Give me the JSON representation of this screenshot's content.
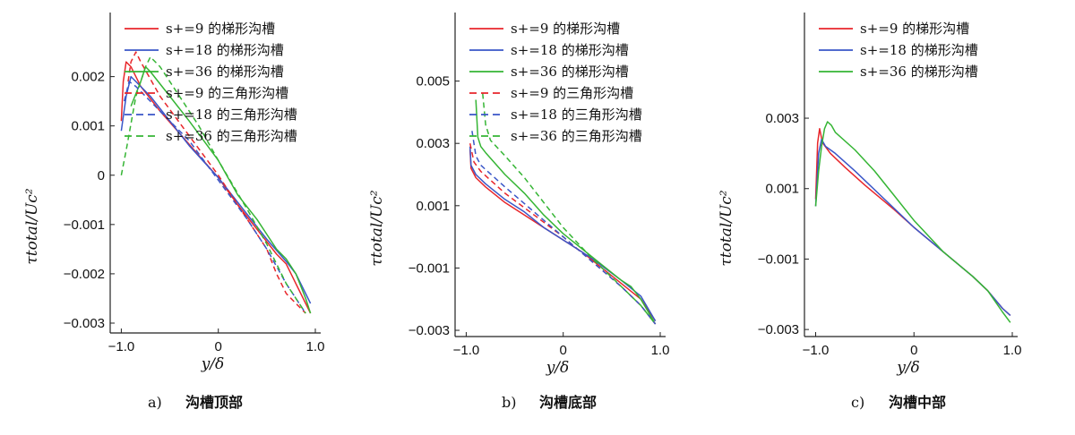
{
  "chart_data": [
    {
      "type": "line",
      "panel_letter": "a)",
      "caption": "沟槽顶部",
      "xlabel": "y/δ",
      "ylabel": "τtotal/Uc²",
      "xlim": [
        -1.05,
        1.0
      ],
      "ylim": [
        -0.0032,
        0.0033
      ],
      "xticks": [
        -1.0,
        0,
        1.0
      ],
      "xtick_labels": [
        "-1.0",
        "0",
        "1.0"
      ],
      "yticks": [
        0.002,
        0.001,
        0,
        -0.001,
        -0.002,
        -0.003
      ],
      "ytick_labels": [
        "0.002",
        "0.001",
        "0",
        "-0.001",
        "-0.002",
        "-0.003"
      ],
      "legend": [
        "s+=9 的梯形沟槽",
        "s+=18 的梯形沟槽",
        "s+=36 的梯形沟槽",
        "s+=9 的三角形沟槽",
        "s+=18 的三角形沟槽",
        "s+=36 的三角形沟槽"
      ],
      "legend_position": "top-left",
      "series": [
        {
          "color": "#e8262b",
          "dash": "solid",
          "points": [
            [
              -1.0,
              0.0011
            ],
            [
              -0.98,
              0.0019
            ],
            [
              -0.95,
              0.0023
            ],
            [
              -0.9,
              0.0022
            ],
            [
              -0.8,
              0.0018
            ],
            [
              -0.6,
              0.0013
            ],
            [
              -0.4,
              0.00085
            ],
            [
              -0.2,
              0.0004
            ],
            [
              0,
              -5e-05
            ],
            [
              0.2,
              -0.0006
            ],
            [
              0.4,
              -0.0011
            ],
            [
              0.6,
              -0.0016
            ],
            [
              0.7,
              -0.0018
            ],
            [
              0.8,
              -0.0022
            ],
            [
              0.9,
              -0.0026
            ],
            [
              0.95,
              -0.0028
            ]
          ]
        },
        {
          "color": "#3a56c8",
          "dash": "solid",
          "points": [
            [
              -1.0,
              0.0009
            ],
            [
              -0.95,
              0.0016
            ],
            [
              -0.9,
              0.002
            ],
            [
              -0.85,
              0.0019
            ],
            [
              -0.7,
              0.0016
            ],
            [
              -0.5,
              0.0011
            ],
            [
              -0.3,
              0.0006
            ],
            [
              0,
              -5e-05
            ],
            [
              0.3,
              -0.0008
            ],
            [
              0.5,
              -0.0013
            ],
            [
              0.7,
              -0.00175
            ],
            [
              0.8,
              -0.002
            ],
            [
              0.95,
              -0.0026
            ]
          ]
        },
        {
          "color": "#35b534",
          "dash": "solid",
          "points": [
            [
              -0.9,
              0.0014
            ],
            [
              -0.8,
              0.0019
            ],
            [
              -0.75,
              0.0022
            ],
            [
              -0.7,
              0.0021
            ],
            [
              -0.5,
              0.0016
            ],
            [
              -0.3,
              0.0011
            ],
            [
              0,
              0.0003
            ],
            [
              0.2,
              -0.0004
            ],
            [
              0.4,
              -0.0009
            ],
            [
              0.6,
              -0.0015
            ],
            [
              0.7,
              -0.0017
            ],
            [
              0.8,
              -0.002
            ],
            [
              0.9,
              -0.0025
            ],
            [
              0.95,
              -0.0028
            ]
          ]
        },
        {
          "color": "#e8262b",
          "dash": "dashed",
          "points": [
            [
              -0.93,
              0.0019
            ],
            [
              -0.9,
              0.0023
            ],
            [
              -0.85,
              0.0025
            ],
            [
              -0.8,
              0.0023
            ],
            [
              -0.6,
              0.0016
            ],
            [
              -0.3,
              0.0008
            ],
            [
              0,
              0.0
            ],
            [
              0.3,
              -0.0009
            ],
            [
              0.5,
              -0.0015
            ],
            [
              0.6,
              -0.002
            ],
            [
              0.7,
              -0.0024
            ],
            [
              0.8,
              -0.0026
            ],
            [
              0.9,
              -0.0028
            ]
          ]
        },
        {
          "color": "#3a56c8",
          "dash": "dashed",
          "points": [
            [
              -0.97,
              0.0015
            ],
            [
              -0.92,
              0.0019
            ],
            [
              -0.85,
              0.0018
            ],
            [
              -0.6,
              0.0013
            ],
            [
              -0.3,
              0.0007
            ],
            [
              0,
              -0.0001
            ],
            [
              0.3,
              -0.0009
            ],
            [
              0.5,
              -0.0015
            ],
            [
              0.7,
              -0.0022
            ],
            [
              0.8,
              -0.0025
            ],
            [
              0.9,
              -0.0028
            ]
          ]
        },
        {
          "color": "#35b534",
          "dash": "dashed",
          "points": [
            [
              -1.0,
              0.0
            ],
            [
              -0.95,
              0.0005
            ],
            [
              -0.85,
              0.0016
            ],
            [
              -0.75,
              0.0022
            ],
            [
              -0.7,
              0.0024
            ],
            [
              -0.6,
              0.0022
            ],
            [
              -0.4,
              0.0016
            ],
            [
              -0.2,
              0.001
            ],
            [
              0,
              0.0003
            ],
            [
              0.3,
              -0.0007
            ],
            [
              0.5,
              -0.0014
            ],
            [
              0.7,
              -0.0022
            ],
            [
              0.8,
              -0.0025
            ],
            [
              0.9,
              -0.0028
            ]
          ]
        }
      ]
    },
    {
      "type": "line",
      "panel_letter": "b)",
      "caption": "沟槽底部",
      "xlabel": "y/δ",
      "ylabel": "τtotal/Uc²",
      "xlim": [
        -1.05,
        1.0
      ],
      "ylim": [
        -0.0032,
        0.0072
      ],
      "xticks": [
        -1.0,
        0,
        1.0
      ],
      "xtick_labels": [
        "-1.0",
        "0",
        "1.0"
      ],
      "yticks": [
        0.005,
        0.003,
        0.001,
        -0.001,
        -0.003
      ],
      "ytick_labels": [
        "0.005",
        "0.003",
        "0.001",
        "-0.001",
        "-0.003"
      ],
      "legend": [
        "s+=9 的梯形沟槽",
        "s+=18 的梯形沟槽",
        "s+=36 的梯形沟槽",
        "s+=9 的三角形沟槽",
        "s+=18 的三角形沟槽",
        "s+=36 的三角形沟槽"
      ],
      "legend_position": "top-left",
      "series": [
        {
          "color": "#e8262b",
          "dash": "solid",
          "points": [
            [
              -0.96,
              0.0028
            ],
            [
              -0.95,
              0.0022
            ],
            [
              -0.9,
              0.0019
            ],
            [
              -0.8,
              0.0016
            ],
            [
              -0.6,
              0.0011
            ],
            [
              -0.4,
              0.0007
            ],
            [
              -0.2,
              0.0003
            ],
            [
              0,
              -0.0001
            ],
            [
              0.2,
              -0.0005
            ],
            [
              0.4,
              -0.001
            ],
            [
              0.6,
              -0.0015
            ],
            [
              0.8,
              -0.002
            ],
            [
              0.95,
              -0.0027
            ]
          ]
        },
        {
          "color": "#3a56c8",
          "dash": "solid",
          "points": [
            [
              -0.96,
              0.0029
            ],
            [
              -0.95,
              0.0023
            ],
            [
              -0.9,
              0.002
            ],
            [
              -0.8,
              0.0017
            ],
            [
              -0.6,
              0.0012
            ],
            [
              -0.4,
              0.0008
            ],
            [
              -0.2,
              0.0003
            ],
            [
              0,
              -0.0001
            ],
            [
              0.3,
              -0.0007
            ],
            [
              0.6,
              -0.0014
            ],
            [
              0.8,
              -0.0019
            ],
            [
              0.95,
              -0.0027
            ]
          ]
        },
        {
          "color": "#35b534",
          "dash": "solid",
          "points": [
            [
              -0.9,
              0.0044
            ],
            [
              -0.88,
              0.0032
            ],
            [
              -0.85,
              0.0029
            ],
            [
              -0.8,
              0.0027
            ],
            [
              -0.6,
              0.002
            ],
            [
              -0.4,
              0.0014
            ],
            [
              -0.2,
              0.0007
            ],
            [
              0,
              0.0001
            ],
            [
              0.2,
              -0.0004
            ],
            [
              0.4,
              -0.0009
            ],
            [
              0.6,
              -0.0014
            ],
            [
              0.7,
              -0.0016
            ],
            [
              0.8,
              -0.002
            ],
            [
              0.95,
              -0.0028
            ]
          ]
        },
        {
          "color": "#e8262b",
          "dash": "dashed",
          "points": [
            [
              -0.96,
              0.003
            ],
            [
              -0.92,
              0.0024
            ],
            [
              -0.85,
              0.0021
            ],
            [
              -0.6,
              0.0014
            ],
            [
              -0.3,
              0.0007
            ],
            [
              0,
              0.0
            ],
            [
              0.3,
              -0.0008
            ],
            [
              0.6,
              -0.0016
            ],
            [
              0.8,
              -0.0022
            ],
            [
              0.95,
              -0.0028
            ]
          ]
        },
        {
          "color": "#3a56c8",
          "dash": "dashed",
          "points": [
            [
              -0.94,
              0.0034
            ],
            [
              -0.9,
              0.0026
            ],
            [
              -0.85,
              0.0023
            ],
            [
              -0.6,
              0.0016
            ],
            [
              -0.3,
              0.0008
            ],
            [
              0,
              0.0
            ],
            [
              0.3,
              -0.0008
            ],
            [
              0.6,
              -0.0016
            ],
            [
              0.8,
              -0.0022
            ],
            [
              0.95,
              -0.0028
            ]
          ]
        },
        {
          "color": "#35b534",
          "dash": "dashed",
          "points": [
            [
              -0.83,
              0.0046
            ],
            [
              -0.8,
              0.0036
            ],
            [
              -0.75,
              0.0031
            ],
            [
              -0.6,
              0.0026
            ],
            [
              -0.4,
              0.0019
            ],
            [
              -0.2,
              0.0011
            ],
            [
              0,
              0.0003
            ],
            [
              0.3,
              -0.0007
            ],
            [
              0.6,
              -0.0016
            ],
            [
              0.8,
              -0.0022
            ],
            [
              0.95,
              -0.0028
            ]
          ]
        }
      ]
    },
    {
      "type": "line",
      "panel_letter": "c)",
      "caption": "沟槽中部",
      "xlabel": "y/δ",
      "ylabel": "τtotal/Uc²",
      "xlim": [
        -1.05,
        1.0
      ],
      "ylim": [
        -0.0032,
        0.006
      ],
      "xticks": [
        -1.0,
        0,
        1.0
      ],
      "xtick_labels": [
        "-1.0",
        "0",
        "1.0"
      ],
      "yticks": [
        0.003,
        0.001,
        -0.001,
        -0.003
      ],
      "ytick_labels": [
        "0.003",
        "0.001",
        "-0.001",
        "-0.003"
      ],
      "legend": [
        "s+=9 的梯形沟槽",
        "s+=18 的梯形沟槽",
        "s+=36 的梯形沟槽"
      ],
      "legend_position": "top-left",
      "series": [
        {
          "color": "#e8262b",
          "dash": "solid",
          "points": [
            [
              -1.0,
              0.0007
            ],
            [
              -0.98,
              0.0023
            ],
            [
              -0.96,
              0.0027
            ],
            [
              -0.93,
              0.0023
            ],
            [
              -0.85,
              0.002
            ],
            [
              -0.7,
              0.0016
            ],
            [
              -0.5,
              0.0011
            ],
            [
              -0.2,
              0.0004
            ],
            [
              0,
              -0.0001
            ],
            [
              0.3,
              -0.0008
            ],
            [
              0.6,
              -0.0015
            ],
            [
              0.75,
              -0.0019
            ],
            [
              0.9,
              -0.0024
            ],
            [
              0.98,
              -0.0026
            ]
          ]
        },
        {
          "color": "#3a56c8",
          "dash": "solid",
          "points": [
            [
              -1.0,
              0.0005
            ],
            [
              -0.97,
              0.002
            ],
            [
              -0.94,
              0.0024
            ],
            [
              -0.9,
              0.0022
            ],
            [
              -0.8,
              0.002
            ],
            [
              -0.6,
              0.0015
            ],
            [
              -0.3,
              0.0007
            ],
            [
              0,
              -0.0001
            ],
            [
              0.3,
              -0.0008
            ],
            [
              0.6,
              -0.0015
            ],
            [
              0.75,
              -0.0019
            ],
            [
              0.9,
              -0.0024
            ],
            [
              0.98,
              -0.0026
            ]
          ]
        },
        {
          "color": "#35b534",
          "dash": "solid",
          "points": [
            [
              -1.0,
              0.0005
            ],
            [
              -0.97,
              0.0015
            ],
            [
              -0.94,
              0.0022
            ],
            [
              -0.91,
              0.0027
            ],
            [
              -0.88,
              0.0029
            ],
            [
              -0.84,
              0.0028
            ],
            [
              -0.8,
              0.0026
            ],
            [
              -0.6,
              0.0021
            ],
            [
              -0.4,
              0.0015
            ],
            [
              -0.2,
              0.0008
            ],
            [
              0,
              0.0001
            ],
            [
              0.3,
              -0.0008
            ],
            [
              0.6,
              -0.0015
            ],
            [
              0.75,
              -0.0019
            ],
            [
              0.9,
              -0.0025
            ],
            [
              0.98,
              -0.0028
            ]
          ]
        }
      ]
    }
  ]
}
